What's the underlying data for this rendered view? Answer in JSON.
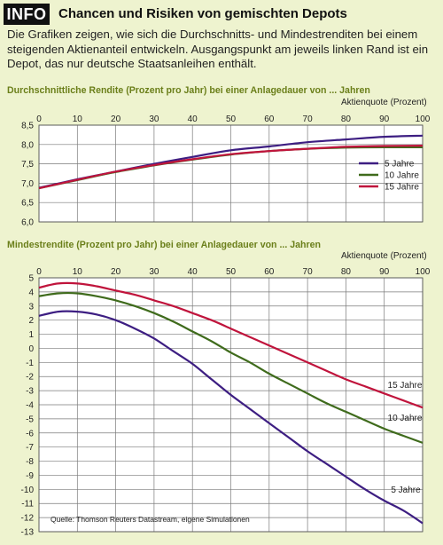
{
  "header": {
    "badge": "INFO",
    "title": "Chancen und Risiken von gemischten Depots"
  },
  "intro": "Die Grafiken zeigen, wie sich die Durchschnitts- und Mindestrenditen bei einem steigenden Aktienanteil entwickeln. Ausgangspunkt am jeweils linken Rand ist ein Depot, das nur deutsche Staatsanleihen enthält.",
  "source": "Quelle: Thomson Reuters Datastream, eigene Simulationen",
  "colors": {
    "5y": "#3d1e82",
    "10y": "#3f6b1c",
    "15y": "#c0143c"
  },
  "chart_data": [
    {
      "type": "line",
      "title": "Durchschnittliche Rendite (Prozent pro Jahr) bei einer Anlagedauer von ... Jahren",
      "xlabel": "Aktienquote (Prozent)",
      "x": [
        0,
        10,
        20,
        30,
        40,
        50,
        60,
        70,
        80,
        90,
        100
      ],
      "xlim": [
        0,
        100
      ],
      "ylim": [
        6.0,
        8.5
      ],
      "yticks": [
        "8,5",
        "8,0",
        "7,5",
        "7,0",
        "6,5",
        "6,0"
      ],
      "xticks": [
        "0",
        "10",
        "20",
        "30",
        "40",
        "50",
        "60",
        "70",
        "80",
        "90",
        "100"
      ],
      "legend": [
        "5 Jahre",
        "10 Jahre",
        "15 Jahre"
      ],
      "grid": true,
      "series": [
        {
          "name": "5 Jahre",
          "key": "5y",
          "values": [
            6.88,
            7.1,
            7.3,
            7.5,
            7.68,
            7.85,
            7.95,
            8.06,
            8.13,
            8.2,
            8.23
          ]
        },
        {
          "name": "10 Jahre",
          "key": "10y",
          "values": [
            6.87,
            7.08,
            7.29,
            7.46,
            7.61,
            7.74,
            7.83,
            7.89,
            7.92,
            7.93,
            7.93
          ]
        },
        {
          "name": "15 Jahre",
          "key": "15y",
          "values": [
            6.87,
            7.09,
            7.3,
            7.47,
            7.62,
            7.75,
            7.83,
            7.89,
            7.94,
            7.96,
            7.97
          ]
        }
      ]
    },
    {
      "type": "line",
      "title": "Mindestrendite (Prozent pro Jahr) bei einer Anlagedauer von ... Jahren",
      "xlabel": "Aktienquote (Prozent)",
      "x": [
        0,
        5,
        10,
        15,
        20,
        25,
        30,
        35,
        40,
        45,
        50,
        55,
        60,
        65,
        70,
        75,
        80,
        85,
        90,
        95,
        100
      ],
      "xlim": [
        0,
        100
      ],
      "ylim": [
        -13,
        5
      ],
      "yticks": [
        "5",
        "4",
        "3",
        "2",
        "1",
        "0",
        "-1",
        "-2",
        "-3",
        "-4",
        "-5",
        "-6",
        "-7",
        "-8",
        "-9",
        "-10",
        "-11",
        "-12",
        "-13"
      ],
      "xticks": [
        "0",
        "10",
        "20",
        "30",
        "40",
        "50",
        "60",
        "70",
        "80",
        "90",
        "100"
      ],
      "grid": true,
      "series": [
        {
          "name": "5 Jahre",
          "key": "5y",
          "label": "5 Jahre",
          "values": [
            2.3,
            2.6,
            2.6,
            2.4,
            2.0,
            1.4,
            0.7,
            -0.2,
            -1.1,
            -2.2,
            -3.3,
            -4.3,
            -5.3,
            -6.3,
            -7.3,
            -8.2,
            -9.1,
            -10.0,
            -10.8,
            -11.5,
            -12.4
          ]
        },
        {
          "name": "10 Jahre",
          "key": "10y",
          "label": "10 Jahre",
          "values": [
            3.7,
            3.9,
            3.9,
            3.7,
            3.4,
            3.0,
            2.5,
            1.9,
            1.2,
            0.5,
            -0.3,
            -1.0,
            -1.8,
            -2.5,
            -3.2,
            -3.9,
            -4.5,
            -5.1,
            -5.7,
            -6.2,
            -6.7
          ]
        },
        {
          "name": "15 Jahre",
          "key": "15y",
          "label": "15 Jahre",
          "values": [
            4.3,
            4.6,
            4.6,
            4.4,
            4.1,
            3.8,
            3.4,
            3.0,
            2.5,
            2.0,
            1.4,
            0.8,
            0.2,
            -0.4,
            -1.0,
            -1.6,
            -2.2,
            -2.7,
            -3.2,
            -3.7,
            -4.2
          ]
        }
      ]
    }
  ]
}
